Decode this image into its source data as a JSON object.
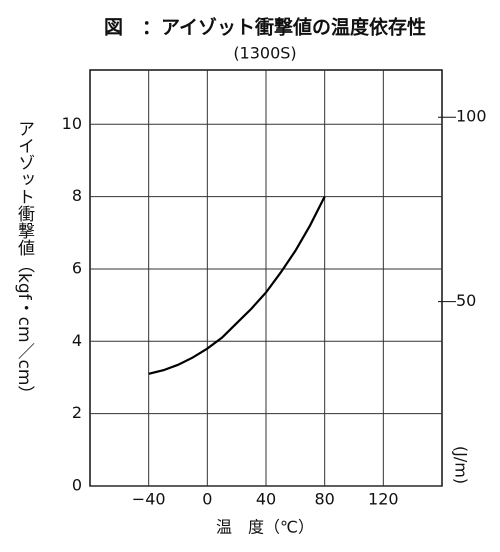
{
  "chart_data": {
    "type": "line",
    "title": "図　：アイゾット衝撃値の温度依存性",
    "subtitle": "(1300S)",
    "x_label": "温　度（℃）",
    "y_label": "アイゾット衝撃値（kgf・cm／cm）",
    "y2_label": "(J/m)",
    "x": [
      -40,
      -30,
      -20,
      -10,
      0,
      10,
      20,
      30,
      40,
      50,
      60,
      70,
      80
    ],
    "series": [
      {
        "color": "#000000",
        "values": [
          3.1,
          3.2,
          3.35,
          3.55,
          3.8,
          4.1,
          4.5,
          4.9,
          5.35,
          5.9,
          6.5,
          7.2,
          8.0
        ]
      }
    ],
    "xlim": [
      -80,
      160
    ],
    "xticks": [
      {
        "value": -40,
        "label": "−40"
      },
      0,
      40,
      80,
      120
    ],
    "ylim": [
      0,
      11.5
    ],
    "yticks": [
      0,
      2,
      4,
      6,
      8,
      10
    ],
    "y2lim": [
      0,
      112.8
    ],
    "y2ticks": [
      50,
      100
    ],
    "grid": true
  }
}
